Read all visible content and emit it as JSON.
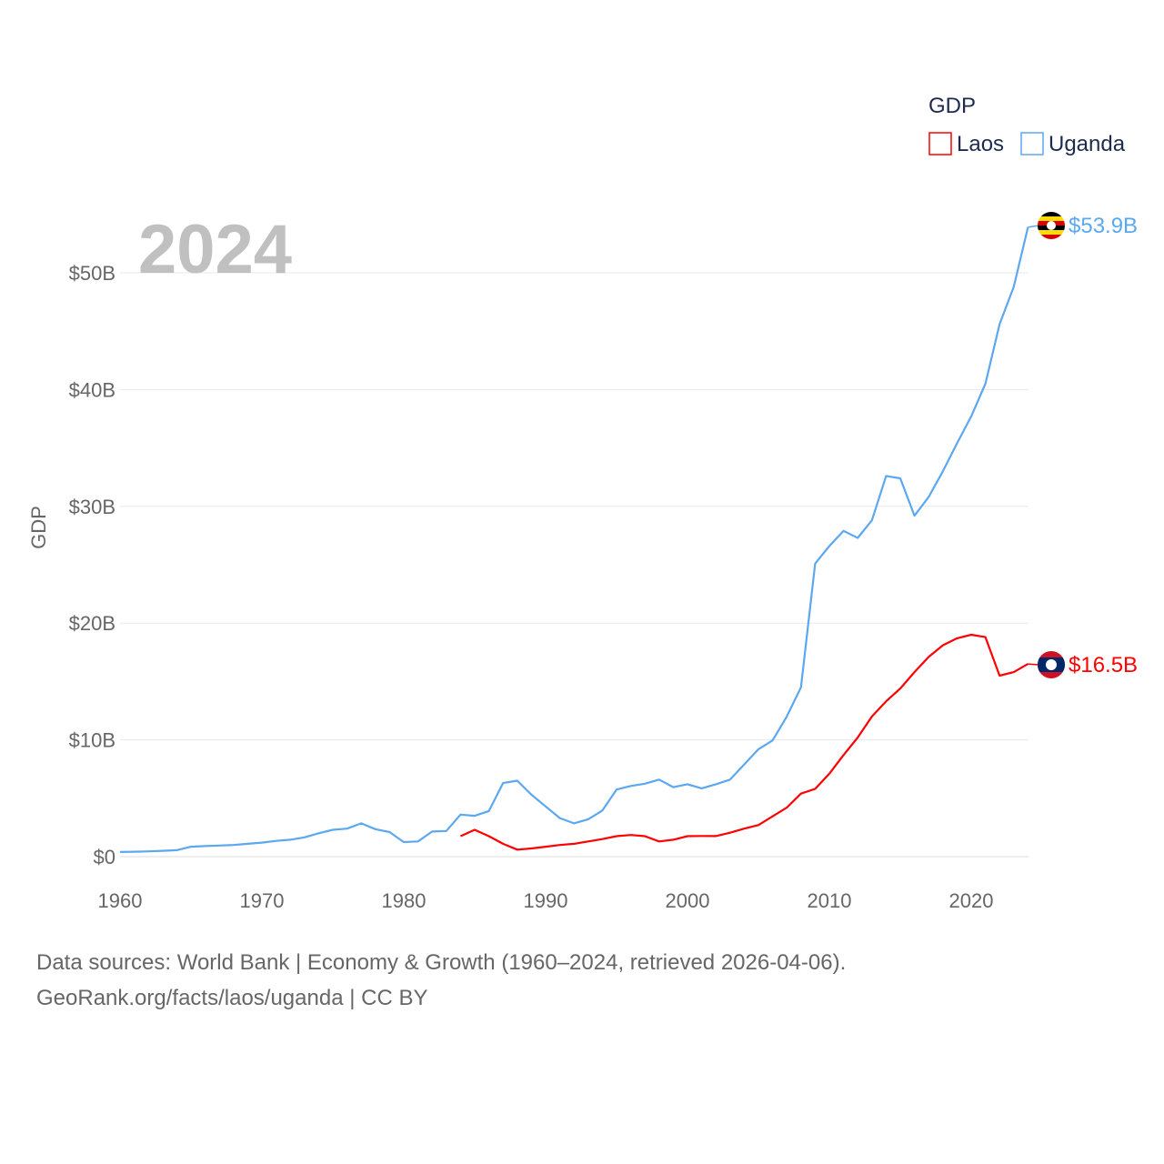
{
  "chart_data": {
    "type": "line",
    "title": "",
    "year_label": "2024",
    "xlabel": "",
    "ylabel": "GDP",
    "xlim": [
      1960,
      2024
    ],
    "ylim": [
      0,
      55
    ],
    "x_ticks": [
      "1960",
      "1970",
      "1980",
      "1990",
      "2000",
      "2010",
      "2020"
    ],
    "y_ticks": [
      {
        "v": 0,
        "label": "$0"
      },
      {
        "v": 10,
        "label": "$10B"
      },
      {
        "v": 20,
        "label": "$20B"
      },
      {
        "v": 30,
        "label": "$30B"
      },
      {
        "v": 40,
        "label": "$40B"
      },
      {
        "v": 50,
        "label": "$50B"
      }
    ],
    "grid": true,
    "legend": {
      "title": "GDP",
      "placement": "top-right"
    },
    "series": [
      {
        "name": "Laos",
        "color": "#ff0000",
        "start_year": 1984,
        "end_label": "$16.5B",
        "values": [
          1.75,
          2.3,
          1.75,
          1.1,
          0.6,
          0.7,
          0.85,
          1.0,
          1.1,
          1.3,
          1.5,
          1.75,
          1.85,
          1.75,
          1.3,
          1.45,
          1.75,
          1.77,
          1.76,
          2.05,
          2.4,
          2.7,
          3.45,
          4.2,
          5.4,
          5.8,
          7.1,
          8.7,
          10.2,
          12.0,
          13.3,
          14.4,
          15.8,
          17.1,
          18.1,
          18.7,
          19.0,
          18.8,
          15.5,
          15.8,
          16.5
        ]
      },
      {
        "name": "Uganda",
        "color": "#5ca8f0",
        "start_year": 1960,
        "end_label": "$53.9B",
        "values": [
          0.4,
          0.42,
          0.45,
          0.5,
          0.55,
          0.85,
          0.9,
          0.95,
          1.0,
          1.1,
          1.2,
          1.35,
          1.45,
          1.65,
          2.0,
          2.3,
          2.4,
          2.85,
          2.35,
          2.1,
          1.25,
          1.3,
          2.15,
          2.2,
          3.6,
          3.5,
          3.9,
          6.3,
          6.5,
          5.3,
          4.3,
          3.3,
          2.85,
          3.2,
          3.95,
          5.75,
          6.05,
          6.25,
          6.6,
          5.95,
          6.2,
          5.85,
          6.2,
          6.6,
          7.9,
          9.2,
          9.95,
          12.0,
          14.5,
          25.1,
          26.6,
          27.9,
          27.3,
          28.8,
          32.6,
          32.4,
          29.2,
          30.8,
          33.0,
          35.4,
          37.7,
          40.5,
          45.6,
          48.8,
          53.9
        ]
      }
    ]
  },
  "footer": {
    "line1": "Data sources: World Bank | Economy & Growth (1960–2024, retrieved 2026-04-06).",
    "line2": "GeoRank.org/facts/laos/uganda | CC BY"
  }
}
